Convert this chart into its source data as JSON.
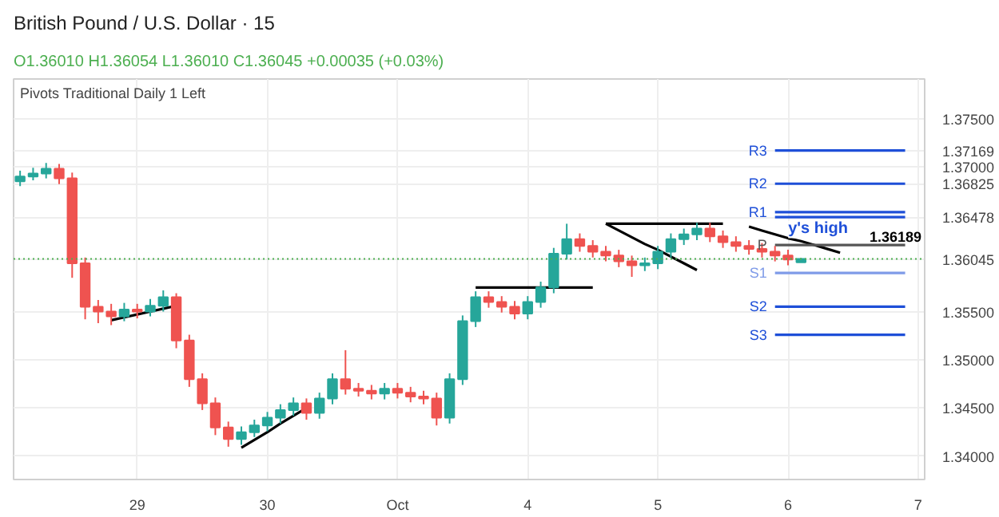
{
  "chart_data": {
    "type": "candlestick",
    "title": "British Pound / U.S. Dollar · 15",
    "subtitle": "O1.36010 H1.36054 L1.36010 C1.36045 +0.00035 (+0.03%)",
    "annotations": [
      "Pivots Traditional Daily 1 Left",
      {
        "text": "y's high",
        "y": 1.3646
      },
      {
        "text": "1.36189",
        "y": 1.36189
      }
    ],
    "categories": [
      null,
      null,
      null,
      null,
      null,
      null,
      null,
      null,
      null,
      "29",
      null,
      null,
      null,
      null,
      null,
      null,
      null,
      null,
      null,
      "30",
      null,
      null,
      null,
      null,
      null,
      null,
      null,
      null,
      null,
      "Oct",
      null,
      null,
      null,
      null,
      null,
      null,
      null,
      null,
      null,
      "4",
      null,
      null,
      null,
      null,
      null,
      null,
      null,
      null,
      null,
      "5",
      null,
      null,
      null,
      null,
      null,
      null,
      null,
      null,
      null,
      "6",
      null,
      null,
      null,
      null,
      null,
      null,
      null,
      null,
      null,
      "7"
    ],
    "ohlc": [
      [
        1.3685,
        1.3696,
        1.368,
        1.369
      ],
      [
        1.369,
        1.3699,
        1.3686,
        1.3693
      ],
      [
        1.3693,
        1.3704,
        1.3688,
        1.3698
      ],
      [
        1.3698,
        1.3703,
        1.3682,
        1.3688
      ],
      [
        1.3688,
        1.3694,
        1.3585,
        1.36
      ],
      [
        1.36,
        1.3606,
        1.3542,
        1.3555
      ],
      [
        1.3555,
        1.3562,
        1.3538,
        1.355
      ],
      [
        1.355,
        1.3558,
        1.3536,
        1.3545
      ],
      [
        1.3545,
        1.3559,
        1.354,
        1.3552
      ],
      [
        1.3552,
        1.3558,
        1.3543,
        1.355
      ],
      [
        1.355,
        1.3563,
        1.3545,
        1.3556
      ],
      [
        1.3556,
        1.3572,
        1.355,
        1.3565
      ],
      [
        1.3565,
        1.3569,
        1.3512,
        1.352
      ],
      [
        1.352,
        1.3526,
        1.3472,
        1.348
      ],
      [
        1.348,
        1.3486,
        1.3448,
        1.3455
      ],
      [
        1.3455,
        1.3461,
        1.3422,
        1.343
      ],
      [
        1.343,
        1.3436,
        1.341,
        1.3418
      ],
      [
        1.3418,
        1.3431,
        1.3412,
        1.3425
      ],
      [
        1.3425,
        1.3438,
        1.342,
        1.3432
      ],
      [
        1.3432,
        1.3446,
        1.3426,
        1.344
      ],
      [
        1.344,
        1.3454,
        1.3434,
        1.3448
      ],
      [
        1.3448,
        1.3461,
        1.3442,
        1.3455
      ],
      [
        1.3455,
        1.346,
        1.3438,
        1.3445
      ],
      [
        1.3445,
        1.3466,
        1.3439,
        1.346
      ],
      [
        1.346,
        1.3486,
        1.3454,
        1.348
      ],
      [
        1.348,
        1.351,
        1.3464,
        1.347
      ],
      [
        1.347,
        1.3476,
        1.3462,
        1.3468
      ],
      [
        1.3468,
        1.3474,
        1.3459,
        1.3465
      ],
      [
        1.3465,
        1.3476,
        1.3459,
        1.347
      ],
      [
        1.347,
        1.3476,
        1.346,
        1.3466
      ],
      [
        1.3466,
        1.3472,
        1.3456,
        1.3462
      ],
      [
        1.3462,
        1.3468,
        1.3454,
        1.346
      ],
      [
        1.346,
        1.3466,
        1.3432,
        1.344
      ],
      [
        1.344,
        1.3486,
        1.3434,
        1.348
      ],
      [
        1.348,
        1.3546,
        1.3474,
        1.354
      ],
      [
        1.354,
        1.3571,
        1.3534,
        1.3565
      ],
      [
        1.3565,
        1.3571,
        1.3554,
        1.356
      ],
      [
        1.356,
        1.3566,
        1.3549,
        1.3555
      ],
      [
        1.3555,
        1.3561,
        1.3542,
        1.3548
      ],
      [
        1.3548,
        1.3566,
        1.3542,
        1.356
      ],
      [
        1.356,
        1.3581,
        1.3554,
        1.3575
      ],
      [
        1.3575,
        1.3616,
        1.3569,
        1.361
      ],
      [
        1.361,
        1.3641,
        1.3604,
        1.3625
      ],
      [
        1.3625,
        1.3631,
        1.3612,
        1.3618
      ],
      [
        1.3618,
        1.3624,
        1.3606,
        1.3612
      ],
      [
        1.3612,
        1.3618,
        1.3602,
        1.3608
      ],
      [
        1.3608,
        1.3614,
        1.3596,
        1.3602
      ],
      [
        1.3602,
        1.3608,
        1.3586,
        1.3598
      ],
      [
        1.3598,
        1.3606,
        1.3592,
        1.36
      ],
      [
        1.36,
        1.3618,
        1.3594,
        1.3612
      ],
      [
        1.3612,
        1.3631,
        1.3606,
        1.3625
      ],
      [
        1.3625,
        1.3636,
        1.3619,
        1.363
      ],
      [
        1.363,
        1.3642,
        1.3624,
        1.3636
      ],
      [
        1.3636,
        1.3642,
        1.3622,
        1.3628
      ],
      [
        1.3628,
        1.3634,
        1.3616,
        1.3622
      ],
      [
        1.3622,
        1.3628,
        1.3612,
        1.3618
      ],
      [
        1.3618,
        1.3624,
        1.3609,
        1.3615
      ],
      [
        1.3615,
        1.3621,
        1.3606,
        1.3612
      ],
      [
        1.3612,
        1.3618,
        1.3602,
        1.3608
      ],
      [
        1.3608,
        1.3614,
        1.3598,
        1.3604
      ],
      [
        1.3601,
        1.36054,
        1.3601,
        1.36045
      ],
      null,
      null,
      null,
      null,
      null,
      null,
      null,
      null,
      null
    ],
    "colors": [
      "#26a69a",
      "#26a69a",
      "#26a69a",
      "#ef5350",
      "#ef5350",
      "#ef5350",
      "#ef5350",
      "#ef5350",
      "#26a69a",
      "#ef5350",
      "#26a69a",
      "#26a69a",
      "#ef5350",
      "#ef5350",
      "#ef5350",
      "#ef5350",
      "#ef5350",
      "#26a69a",
      "#26a69a",
      "#26a69a",
      "#26a69a",
      "#26a69a",
      "#ef5350",
      "#26a69a",
      "#26a69a",
      "#ef5350",
      "#ef5350",
      "#ef5350",
      "#26a69a",
      "#ef5350",
      "#ef5350",
      "#ef5350",
      "#ef5350",
      "#26a69a",
      "#26a69a",
      "#26a69a",
      "#ef5350",
      "#ef5350",
      "#ef5350",
      "#26a69a",
      "#26a69a",
      "#26a69a",
      "#26a69a",
      "#ef5350",
      "#ef5350",
      "#ef5350",
      "#ef5350",
      "#ef5350",
      "#26a69a",
      "#26a69a",
      "#26a69a",
      "#26a69a",
      "#26a69a",
      "#ef5350",
      "#ef5350",
      "#ef5350",
      "#ef5350",
      "#ef5350",
      "#ef5350",
      "#ef5350",
      "#26a69a",
      null,
      null,
      null,
      null,
      null,
      null,
      null,
      null,
      null
    ],
    "series": [
      {
        "type": "line",
        "color": "#000000",
        "values": [
          null,
          null,
          null,
          null,
          null,
          null,
          null,
          1.3541,
          1.3544,
          1.3547,
          1.355,
          1.3553,
          1.3556,
          null,
          null,
          null,
          null,
          null,
          null,
          null,
          null,
          null,
          null,
          null,
          null,
          null,
          null,
          null,
          null,
          null,
          null,
          null,
          null,
          null,
          null,
          null,
          null,
          null,
          null,
          null,
          null,
          null,
          null,
          null,
          null,
          null,
          null,
          null,
          null,
          null,
          null,
          null,
          null,
          null,
          null,
          null,
          null,
          null,
          null,
          null,
          null,
          null,
          null,
          null,
          null,
          null,
          null,
          null,
          null,
          null
        ]
      },
      {
        "type": "line",
        "color": "#000000",
        "values": [
          null,
          null,
          null,
          null,
          null,
          null,
          null,
          null,
          null,
          null,
          null,
          null,
          null,
          null,
          null,
          null,
          null,
          1.3409,
          1.3417,
          1.3425,
          1.3434,
          1.3442,
          1.345,
          null,
          null,
          null,
          null,
          null,
          null,
          null,
          null,
          null,
          null,
          null,
          null,
          null,
          null,
          null,
          null,
          null,
          null,
          null,
          null,
          null,
          null,
          null,
          null,
          null,
          null,
          null,
          null,
          null,
          null,
          null,
          null,
          null,
          null,
          null,
          null,
          null,
          null,
          null,
          null,
          null,
          null,
          null,
          null,
          null,
          null,
          null
        ]
      },
      {
        "type": "line",
        "color": "#000000",
        "values": [
          null,
          null,
          null,
          null,
          null,
          null,
          null,
          null,
          null,
          null,
          null,
          null,
          null,
          null,
          null,
          null,
          null,
          null,
          null,
          null,
          null,
          null,
          null,
          null,
          null,
          null,
          null,
          null,
          null,
          null,
          null,
          null,
          null,
          null,
          null,
          1.3575,
          1.3575,
          1.3575,
          1.3575,
          1.3575,
          1.3575,
          1.3575,
          1.3575,
          1.3575,
          1.3575,
          null,
          null,
          null,
          null,
          null,
          null,
          null,
          null,
          null,
          null,
          null,
          null,
          null,
          null,
          null,
          null,
          null,
          null,
          null,
          null,
          null,
          null,
          null,
          null,
          null
        ]
      },
      {
        "type": "line",
        "color": "#000000",
        "values": [
          null,
          null,
          null,
          null,
          null,
          null,
          null,
          null,
          null,
          null,
          null,
          null,
          null,
          null,
          null,
          null,
          null,
          null,
          null,
          null,
          null,
          null,
          null,
          null,
          null,
          null,
          null,
          null,
          null,
          null,
          null,
          null,
          null,
          null,
          null,
          null,
          null,
          null,
          null,
          null,
          null,
          null,
          null,
          null,
          null,
          1.3641,
          1.3641,
          1.3641,
          1.3641,
          1.3641,
          1.3641,
          1.3641,
          1.3641,
          1.3641,
          1.3641,
          null,
          null,
          null,
          null,
          null,
          null,
          null,
          null,
          null,
          null,
          null,
          null,
          null,
          null,
          null
        ]
      },
      {
        "type": "line",
        "color": "#000000",
        "values": [
          null,
          null,
          null,
          null,
          null,
          null,
          null,
          null,
          null,
          null,
          null,
          null,
          null,
          null,
          null,
          null,
          null,
          null,
          null,
          null,
          null,
          null,
          null,
          null,
          null,
          null,
          null,
          null,
          null,
          null,
          null,
          null,
          null,
          null,
          null,
          null,
          null,
          null,
          null,
          null,
          null,
          null,
          null,
          null,
          null,
          1.3641,
          1.3634,
          1.3627,
          1.362,
          1.3614,
          1.3607,
          1.36,
          1.3593,
          null,
          null,
          null,
          null,
          null,
          null,
          null,
          null,
          null,
          null,
          null,
          null,
          null,
          null,
          null,
          null,
          null
        ]
      },
      {
        "type": "line",
        "color": "#000000",
        "values": [
          null,
          null,
          null,
          null,
          null,
          null,
          null,
          null,
          null,
          null,
          null,
          null,
          null,
          null,
          null,
          null,
          null,
          null,
          null,
          null,
          null,
          null,
          null,
          null,
          null,
          null,
          null,
          null,
          null,
          null,
          null,
          null,
          null,
          null,
          null,
          null,
          null,
          null,
          null,
          null,
          null,
          null,
          null,
          null,
          null,
          null,
          null,
          null,
          null,
          null,
          null,
          null,
          null,
          null,
          null,
          null,
          1.3638,
          1.3634,
          1.363,
          1.3626,
          1.3623,
          1.3619,
          1.3615,
          1.3611,
          null,
          null,
          null,
          null,
          null,
          null
        ]
      },
      {
        "type": "line",
        "name": "R3",
        "color": "#1e4fd8",
        "values": [
          null,
          null,
          null,
          null,
          null,
          null,
          null,
          null,
          null,
          null,
          null,
          null,
          null,
          null,
          null,
          null,
          null,
          null,
          null,
          null,
          null,
          null,
          null,
          null,
          null,
          null,
          null,
          null,
          null,
          null,
          null,
          null,
          null,
          null,
          null,
          null,
          null,
          null,
          null,
          null,
          null,
          null,
          null,
          null,
          null,
          null,
          null,
          null,
          null,
          null,
          null,
          null,
          null,
          null,
          null,
          null,
          null,
          null,
          1.37169,
          1.37169,
          1.37169,
          1.37169,
          1.37169,
          1.37169,
          1.37169,
          1.37169,
          1.37169,
          1.37169,
          1.37169,
          null
        ]
      },
      {
        "type": "line",
        "name": "R2",
        "color": "#1e4fd8",
        "values": [
          null,
          null,
          null,
          null,
          null,
          null,
          null,
          null,
          null,
          null,
          null,
          null,
          null,
          null,
          null,
          null,
          null,
          null,
          null,
          null,
          null,
          null,
          null,
          null,
          null,
          null,
          null,
          null,
          null,
          null,
          null,
          null,
          null,
          null,
          null,
          null,
          null,
          null,
          null,
          null,
          null,
          null,
          null,
          null,
          null,
          null,
          null,
          null,
          null,
          null,
          null,
          null,
          null,
          null,
          null,
          null,
          null,
          null,
          1.36825,
          1.36825,
          1.36825,
          1.36825,
          1.36825,
          1.36825,
          1.36825,
          1.36825,
          1.36825,
          1.36825,
          1.36825,
          null
        ]
      },
      {
        "type": "line",
        "name": "R1",
        "color": "#1e4fd8",
        "values": [
          null,
          null,
          null,
          null,
          null,
          null,
          null,
          null,
          null,
          null,
          null,
          null,
          null,
          null,
          null,
          null,
          null,
          null,
          null,
          null,
          null,
          null,
          null,
          null,
          null,
          null,
          null,
          null,
          null,
          null,
          null,
          null,
          null,
          null,
          null,
          null,
          null,
          null,
          null,
          null,
          null,
          null,
          null,
          null,
          null,
          null,
          null,
          null,
          null,
          null,
          null,
          null,
          null,
          null,
          null,
          null,
          null,
          null,
          1.3653,
          1.3653,
          1.3653,
          1.3653,
          1.3653,
          1.3653,
          1.3653,
          1.3653,
          1.3653,
          1.3653,
          1.3653,
          null
        ]
      },
      {
        "type": "line",
        "color": "#1e4fd8",
        "values": [
          null,
          null,
          null,
          null,
          null,
          null,
          null,
          null,
          null,
          null,
          null,
          null,
          null,
          null,
          null,
          null,
          null,
          null,
          null,
          null,
          null,
          null,
          null,
          null,
          null,
          null,
          null,
          null,
          null,
          null,
          null,
          null,
          null,
          null,
          null,
          null,
          null,
          null,
          null,
          null,
          null,
          null,
          null,
          null,
          null,
          null,
          null,
          null,
          null,
          null,
          null,
          null,
          null,
          null,
          null,
          null,
          null,
          null,
          1.36478,
          1.36478,
          1.36478,
          1.36478,
          1.36478,
          1.36478,
          1.36478,
          1.36478,
          1.36478,
          1.36478,
          1.36478,
          null
        ]
      },
      {
        "type": "line",
        "name": "P",
        "color": "#555555",
        "values": [
          null,
          null,
          null,
          null,
          null,
          null,
          null,
          null,
          null,
          null,
          null,
          null,
          null,
          null,
          null,
          null,
          null,
          null,
          null,
          null,
          null,
          null,
          null,
          null,
          null,
          null,
          null,
          null,
          null,
          null,
          null,
          null,
          null,
          null,
          null,
          null,
          null,
          null,
          null,
          null,
          null,
          null,
          null,
          null,
          null,
          null,
          null,
          null,
          null,
          null,
          null,
          null,
          null,
          null,
          null,
          null,
          null,
          null,
          1.36189,
          1.36189,
          1.36189,
          1.36189,
          1.36189,
          1.36189,
          1.36189,
          1.36189,
          1.36189,
          1.36189,
          1.36189,
          null
        ]
      },
      {
        "type": "line",
        "name": "S1",
        "color": "#7f9be8",
        "values": [
          null,
          null,
          null,
          null,
          null,
          null,
          null,
          null,
          null,
          null,
          null,
          null,
          null,
          null,
          null,
          null,
          null,
          null,
          null,
          null,
          null,
          null,
          null,
          null,
          null,
          null,
          null,
          null,
          null,
          null,
          null,
          null,
          null,
          null,
          null,
          null,
          null,
          null,
          null,
          null,
          null,
          null,
          null,
          null,
          null,
          null,
          null,
          null,
          null,
          null,
          null,
          null,
          null,
          null,
          null,
          null,
          null,
          null,
          1.359,
          1.359,
          1.359,
          1.359,
          1.359,
          1.359,
          1.359,
          1.359,
          1.359,
          1.359,
          1.359,
          null
        ]
      },
      {
        "type": "line",
        "name": "S2",
        "color": "#1e4fd8",
        "values": [
          null,
          null,
          null,
          null,
          null,
          null,
          null,
          null,
          null,
          null,
          null,
          null,
          null,
          null,
          null,
          null,
          null,
          null,
          null,
          null,
          null,
          null,
          null,
          null,
          null,
          null,
          null,
          null,
          null,
          null,
          null,
          null,
          null,
          null,
          null,
          null,
          null,
          null,
          null,
          null,
          null,
          null,
          null,
          null,
          null,
          null,
          null,
          null,
          null,
          null,
          null,
          null,
          null,
          null,
          null,
          null,
          null,
          null,
          1.3555,
          1.3555,
          1.3555,
          1.3555,
          1.3555,
          1.3555,
          1.3555,
          1.3555,
          1.3555,
          1.3555,
          1.3555,
          null
        ]
      },
      {
        "type": "line",
        "name": "S3",
        "color": "#1e4fd8",
        "values": [
          null,
          null,
          null,
          null,
          null,
          null,
          null,
          null,
          null,
          null,
          null,
          null,
          null,
          null,
          null,
          null,
          null,
          null,
          null,
          null,
          null,
          null,
          null,
          null,
          null,
          null,
          null,
          null,
          null,
          null,
          null,
          null,
          null,
          null,
          null,
          null,
          null,
          null,
          null,
          null,
          null,
          null,
          null,
          null,
          null,
          null,
          null,
          null,
          null,
          null,
          null,
          null,
          null,
          null,
          null,
          null,
          null,
          null,
          1.3526,
          1.3526,
          1.3526,
          1.3526,
          1.3526,
          1.3526,
          1.3526,
          1.3526,
          1.3526,
          1.3526,
          1.3526,
          null
        ]
      }
    ],
    "ref_lines": [
      {
        "axis": "y",
        "value": 1.36045,
        "color": "#4caf50",
        "line_style": "dotted"
      }
    ],
    "ylim": [
      1.3376,
      1.3791
    ],
    "yticks": [
      {
        "value": 1.34,
        "label": "1.34000"
      },
      {
        "value": 1.345,
        "label": "1.34500"
      },
      {
        "value": 1.35,
        "label": "1.35000"
      },
      {
        "value": 1.355,
        "label": "1.35500"
      },
      {
        "value": 1.36045,
        "label": "1.36045"
      },
      {
        "value": 1.36478,
        "label": "1.36478"
      },
      {
        "value": 1.36825,
        "label": "1.36825"
      },
      {
        "value": 1.37,
        "label": "1.37000"
      },
      {
        "value": 1.37169,
        "label": "1.37169"
      },
      {
        "value": 1.375,
        "label": "1.37500"
      }
    ],
    "grid": true
  }
}
